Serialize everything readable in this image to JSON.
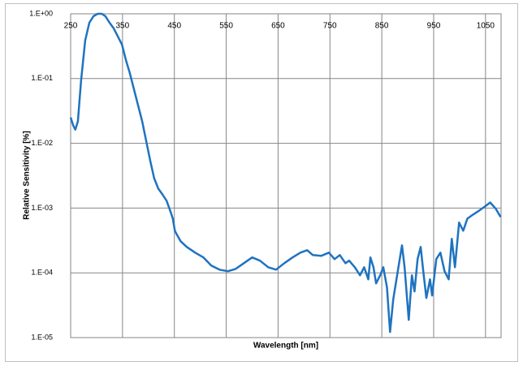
{
  "chart_data": {
    "type": "line",
    "x_label": "Wavelength [nm]",
    "y_label": "Relative Sensitivity [%]",
    "color": "#1f73c0",
    "log_y": true,
    "grid": true,
    "x_ticks_position": "top",
    "xlim": [
      250,
      1080
    ],
    "xticks": [
      250,
      350,
      450,
      550,
      650,
      750,
      850,
      950,
      1050
    ],
    "ylim": [
      1e-05,
      1
    ],
    "yticks": [
      {
        "value": 1,
        "label": "1.E+00"
      },
      {
        "value": 0.1,
        "label": "1.E-01"
      },
      {
        "value": 0.01,
        "label": "1.E-02"
      },
      {
        "value": 0.001,
        "label": "1.E-03"
      },
      {
        "value": 0.0001,
        "label": "1.E-04"
      },
      {
        "value": 1e-05,
        "label": "1.E-05"
      }
    ],
    "x": [
      250,
      255,
      259,
      264,
      270,
      278,
      286,
      294,
      302,
      310,
      317,
      325,
      333,
      341,
      349,
      357,
      364,
      372,
      380,
      388,
      396,
      404,
      411,
      419,
      427,
      435,
      443,
      447,
      451,
      455,
      462,
      474,
      490,
      506,
      521,
      537,
      553,
      568,
      584,
      600,
      615,
      631,
      646,
      662,
      678,
      693,
      706,
      717,
      733,
      748,
      759,
      769,
      780,
      787,
      798,
      808,
      816,
      824,
      828,
      834,
      839,
      847,
      853,
      860,
      866,
      872,
      882,
      889,
      894,
      902,
      908,
      913,
      919,
      925,
      930,
      936,
      943,
      947,
      955,
      963,
      971,
      979,
      985,
      991,
      999,
      1007,
      1015,
      1026,
      1038,
      1049,
      1059,
      1070,
      1079
    ],
    "values": [
      0.0251,
      0.0188,
      0.0163,
      0.0218,
      0.0917,
      0.387,
      0.729,
      0.917,
      1,
      1,
      0.917,
      0.729,
      0.596,
      0.447,
      0.335,
      0.188,
      0.122,
      0.0688,
      0.0387,
      0.0218,
      0.0106,
      0.00516,
      0.0029,
      0.002,
      0.00163,
      0.0013,
      0.000866,
      0.000688,
      0.000447,
      0.000387,
      0.000307,
      0.000251,
      0.000205,
      0.000173,
      0.00013,
      0.000112,
      0.000106,
      0.000115,
      0.000141,
      0.000173,
      0.000154,
      0.000122,
      0.000112,
      0.000141,
      0.000173,
      0.000205,
      0.000224,
      0.000188,
      0.000183,
      0.000205,
      0.000163,
      0.000188,
      0.000141,
      0.000154,
      0.000122,
      9.17e-05,
      0.000122,
      7.94e-05,
      0.000173,
      0.000122,
      6.88e-05,
      9.17e-05,
      0.000122,
      5.96e-05,
      1.22e-05,
      3.87e-05,
      0.000122,
      0.000266,
      0.000122,
      1.88e-05,
      9.17e-05,
      5.16e-05,
      0.000163,
      0.000251,
      0.000106,
      4.1e-05,
      7.94e-05,
      4.47e-05,
      0.000163,
      0.000205,
      0.000106,
      7.94e-05,
      0.000335,
      0.000122,
      0.000596,
      0.000447,
      0.000688,
      0.000794,
      0.000917,
      0.00106,
      0.00122,
      0.000972,
      0.000729
    ]
  }
}
